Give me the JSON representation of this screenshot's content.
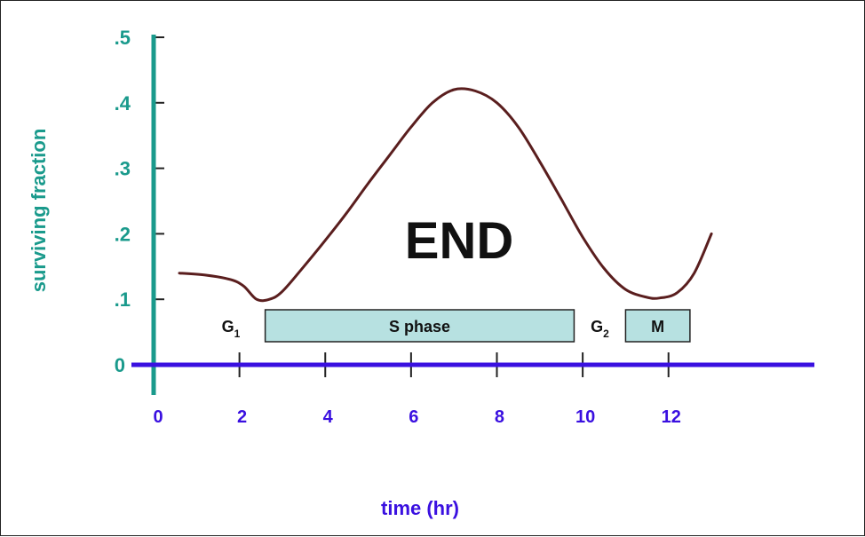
{
  "chart_data": {
    "type": "line",
    "xlabel": "time (hr)",
    "ylabel": "surviving fraction",
    "annotation": "END",
    "xlim": [
      0,
      15.4
    ],
    "ylim": [
      0,
      0.5
    ],
    "x_ticks": [
      {
        "value": 0,
        "label": "0"
      },
      {
        "value": 2,
        "label": "2"
      },
      {
        "value": 4,
        "label": "4"
      },
      {
        "value": 6,
        "label": "6"
      },
      {
        "value": 8,
        "label": "8"
      },
      {
        "value": 10,
        "label": "10"
      },
      {
        "value": 12,
        "label": "12"
      }
    ],
    "y_ticks": [
      {
        "value": 0,
        "label": "0"
      },
      {
        "value": 0.1,
        "label": ".1"
      },
      {
        "value": 0.2,
        "label": ".2"
      },
      {
        "value": 0.3,
        "label": ".3"
      },
      {
        "value": 0.4,
        "label": ".4"
      },
      {
        "value": 0.5,
        "label": ".5"
      }
    ],
    "series": [
      {
        "color": "#5a1e1e",
        "x": [
          0.6,
          1.2,
          1.8,
          2.1,
          2.4,
          2.7,
          3.0,
          3.5,
          4.0,
          4.5,
          5.0,
          5.5,
          6.0,
          6.5,
          7.0,
          7.5,
          8.0,
          8.5,
          9.0,
          9.5,
          10.0,
          10.5,
          11.0,
          11.5,
          11.8,
          12.2,
          12.6,
          13.0
        ],
        "y": [
          0.14,
          0.137,
          0.13,
          0.12,
          0.1,
          0.1,
          0.112,
          0.15,
          0.19,
          0.232,
          0.277,
          0.32,
          0.363,
          0.4,
          0.42,
          0.418,
          0.4,
          0.363,
          0.31,
          0.253,
          0.195,
          0.147,
          0.115,
          0.103,
          0.102,
          0.11,
          0.14,
          0.2
        ]
      }
    ],
    "phases": [
      {
        "name": "G",
        "sub": "1",
        "boxed": false,
        "start": 1.0,
        "end": 2.6
      },
      {
        "name": "S phase",
        "sub": "",
        "boxed": true,
        "start": 2.6,
        "end": 9.8
      },
      {
        "name": "G",
        "sub": "2",
        "boxed": false,
        "start": 9.8,
        "end": 11.0
      },
      {
        "name": "M",
        "sub": "",
        "boxed": true,
        "start": 11.0,
        "end": 12.5
      }
    ],
    "colors": {
      "x_axis": "#3a10e0",
      "y_axis": "#1a9a8c",
      "curve": "#5a1e1e",
      "phase_box_fill": "#b7e1e1",
      "phase_box_stroke": "#222222"
    },
    "grid": false
  }
}
